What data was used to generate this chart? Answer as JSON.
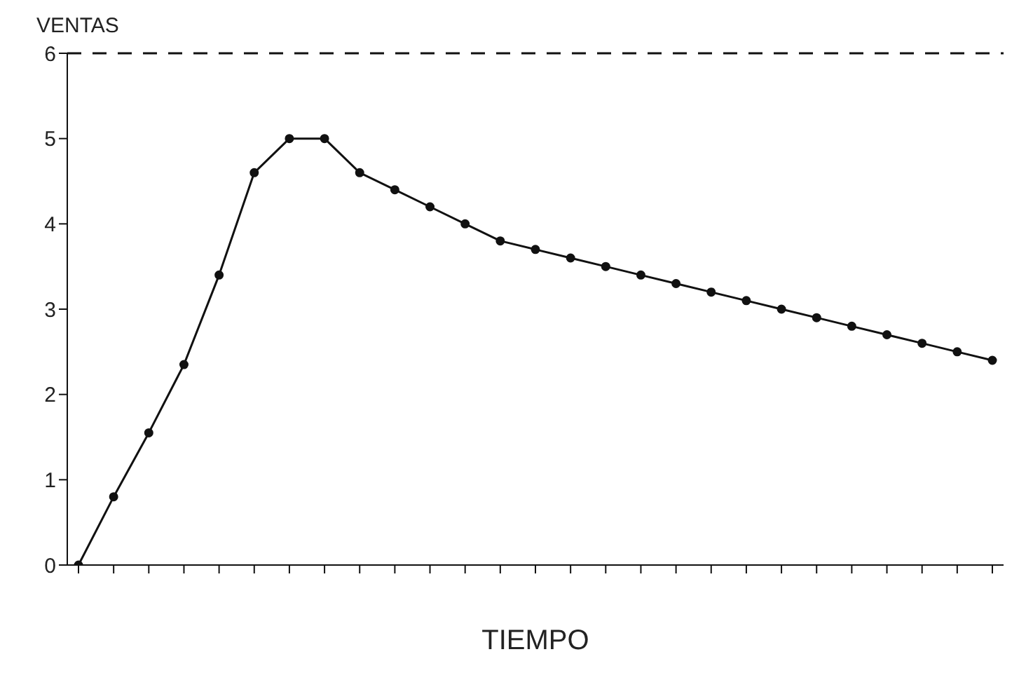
{
  "chart_data": {
    "type": "line",
    "ylabel": "VENTAS",
    "xlabel": "TIEMPO",
    "categories": [
      null,
      null,
      null,
      null,
      null,
      null,
      null,
      null,
      null,
      null,
      null,
      null,
      null,
      null,
      null,
      null,
      null,
      null,
      null,
      null,
      null,
      null,
      null,
      null,
      null,
      null,
      null
    ],
    "series": [
      {
        "color": "#111111",
        "values": [
          0,
          0.8,
          1.55,
          2.35,
          3.4,
          4.6,
          5,
          5,
          4.6,
          4.4,
          4.2,
          4,
          3.8,
          3.7,
          3.6,
          3.5,
          3.4,
          3.3,
          3.2,
          3.1,
          3,
          2.9,
          2.8,
          2.7,
          2.6,
          2.5,
          2.4
        ]
      }
    ],
    "ylim": [
      0,
      6
    ],
    "yticks": [
      0,
      1,
      2,
      3,
      4,
      5,
      6
    ],
    "grid": false,
    "marker": "circle",
    "line_style": "solid",
    "ref_lines": [
      {
        "axis": "y",
        "value": 6,
        "color": "#111111",
        "line_style": "dashed"
      }
    ]
  }
}
